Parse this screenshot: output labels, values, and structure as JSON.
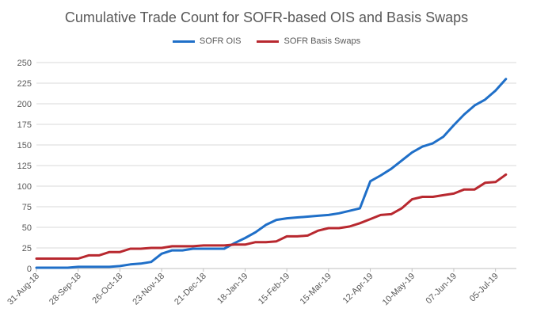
{
  "chart_data": {
    "type": "line",
    "title": "Cumulative Trade Count for SOFR-based OIS and Basis Swaps",
    "xlabel": "",
    "ylabel": "",
    "ylim": [
      0,
      250
    ],
    "yticks": [
      0,
      25,
      50,
      75,
      100,
      125,
      150,
      175,
      200,
      225,
      250
    ],
    "grid": true,
    "legend_position": "top-center",
    "x_tick_labels": [
      "31-Aug-18",
      "28-Sep-18",
      "26-Oct-18",
      "23-Nov-18",
      "21-Dec-18",
      "18-Jan-19",
      "15-Feb-19",
      "15-Mar-19",
      "12-Apr-19",
      "10-May-19",
      "07-Jun-19",
      "05-Jul-19"
    ],
    "x_start": "31-Aug-18",
    "x_end": "19-Jul-19",
    "series": [
      {
        "name": "SOFR OIS",
        "color": "#1F6FC8",
        "points": [
          [
            "31-Aug-18",
            1
          ],
          [
            "07-Sep-18",
            1
          ],
          [
            "14-Sep-18",
            1
          ],
          [
            "21-Sep-18",
            1
          ],
          [
            "28-Sep-18",
            2
          ],
          [
            "05-Oct-18",
            2
          ],
          [
            "12-Oct-18",
            2
          ],
          [
            "19-Oct-18",
            2
          ],
          [
            "26-Oct-18",
            3
          ],
          [
            "02-Nov-18",
            5
          ],
          [
            "09-Nov-18",
            6
          ],
          [
            "16-Nov-18",
            8
          ],
          [
            "23-Nov-18",
            18
          ],
          [
            "30-Nov-18",
            22
          ],
          [
            "07-Dec-18",
            22
          ],
          [
            "14-Dec-18",
            24
          ],
          [
            "21-Dec-18",
            24
          ],
          [
            "28-Dec-18",
            24
          ],
          [
            "04-Jan-19",
            24
          ],
          [
            "11-Jan-19",
            31
          ],
          [
            "18-Jan-19",
            37
          ],
          [
            "25-Jan-19",
            44
          ],
          [
            "01-Feb-19",
            53
          ],
          [
            "08-Feb-19",
            59
          ],
          [
            "15-Feb-19",
            61
          ],
          [
            "22-Feb-19",
            62
          ],
          [
            "01-Mar-19",
            63
          ],
          [
            "08-Mar-19",
            64
          ],
          [
            "15-Mar-19",
            65
          ],
          [
            "22-Mar-19",
            67
          ],
          [
            "29-Mar-19",
            70
          ],
          [
            "05-Apr-19",
            73
          ],
          [
            "12-Apr-19",
            106
          ],
          [
            "19-Apr-19",
            113
          ],
          [
            "26-Apr-19",
            121
          ],
          [
            "03-May-19",
            131
          ],
          [
            "10-May-19",
            141
          ],
          [
            "17-May-19",
            148
          ],
          [
            "24-May-19",
            152
          ],
          [
            "31-May-19",
            160
          ],
          [
            "07-Jun-19",
            174
          ],
          [
            "14-Jun-19",
            187
          ],
          [
            "21-Jun-19",
            198
          ],
          [
            "28-Jun-19",
            205
          ],
          [
            "05-Jul-19",
            216
          ],
          [
            "12-Jul-19",
            230
          ]
        ]
      },
      {
        "name": "SOFR Basis Swaps",
        "color": "#B8282F",
        "points": [
          [
            "31-Aug-18",
            12
          ],
          [
            "07-Sep-18",
            12
          ],
          [
            "14-Sep-18",
            12
          ],
          [
            "21-Sep-18",
            12
          ],
          [
            "28-Sep-18",
            12
          ],
          [
            "05-Oct-18",
            16
          ],
          [
            "12-Oct-18",
            16
          ],
          [
            "19-Oct-18",
            20
          ],
          [
            "26-Oct-18",
            20
          ],
          [
            "02-Nov-18",
            24
          ],
          [
            "09-Nov-18",
            24
          ],
          [
            "16-Nov-18",
            25
          ],
          [
            "23-Nov-18",
            25
          ],
          [
            "30-Nov-18",
            27
          ],
          [
            "07-Dec-18",
            27
          ],
          [
            "14-Dec-18",
            27
          ],
          [
            "21-Dec-18",
            28
          ],
          [
            "28-Dec-18",
            28
          ],
          [
            "04-Jan-19",
            28
          ],
          [
            "11-Jan-19",
            29
          ],
          [
            "18-Jan-19",
            29
          ],
          [
            "25-Jan-19",
            32
          ],
          [
            "01-Feb-19",
            32
          ],
          [
            "08-Feb-19",
            33
          ],
          [
            "15-Feb-19",
            39
          ],
          [
            "22-Feb-19",
            39
          ],
          [
            "01-Mar-19",
            40
          ],
          [
            "08-Mar-19",
            46
          ],
          [
            "15-Mar-19",
            49
          ],
          [
            "22-Mar-19",
            49
          ],
          [
            "29-Mar-19",
            51
          ],
          [
            "05-Apr-19",
            55
          ],
          [
            "12-Apr-19",
            60
          ],
          [
            "19-Apr-19",
            65
          ],
          [
            "26-Apr-19",
            66
          ],
          [
            "03-May-19",
            73
          ],
          [
            "10-May-19",
            84
          ],
          [
            "17-May-19",
            87
          ],
          [
            "24-May-19",
            87
          ],
          [
            "31-May-19",
            89
          ],
          [
            "07-Jun-19",
            91
          ],
          [
            "14-Jun-19",
            96
          ],
          [
            "21-Jun-19",
            96
          ],
          [
            "28-Jun-19",
            104
          ],
          [
            "05-Jul-19",
            105
          ],
          [
            "12-Jul-19",
            114
          ]
        ]
      }
    ]
  }
}
